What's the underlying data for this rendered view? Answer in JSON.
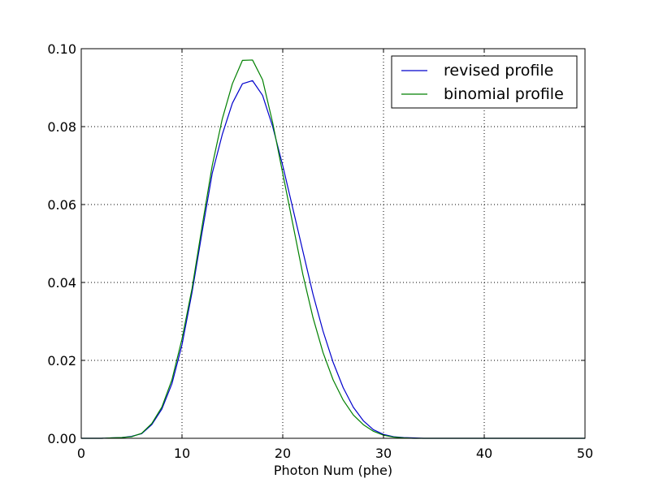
{
  "chart_data": {
    "type": "line",
    "title": "",
    "xlabel": "Photon Num (phe)",
    "ylabel": "",
    "xlim": [
      0,
      50
    ],
    "ylim": [
      0,
      0.1
    ],
    "grid": true,
    "legend_position": "top-right",
    "x_ticks": [
      0,
      10,
      20,
      30,
      40,
      50
    ],
    "x_tick_labels": [
      "0",
      "10",
      "20",
      "30",
      "40",
      "50"
    ],
    "y_ticks": [
      0,
      0.02,
      0.04,
      0.06,
      0.08,
      0.1
    ],
    "y_tick_labels": [
      "0.00",
      "0.02",
      "0.04",
      "0.06",
      "0.08",
      "0.10"
    ],
    "series": [
      {
        "name": "revised profile",
        "color": "#0000cc",
        "x": [
          0,
          1,
          2,
          3,
          4,
          5,
          6,
          7,
          8,
          9,
          10,
          11,
          12,
          13,
          14,
          15,
          16,
          17,
          18,
          19,
          20,
          21,
          22,
          23,
          24,
          25,
          26,
          27,
          28,
          29,
          30,
          31,
          32,
          33,
          34,
          35,
          36,
          37,
          38,
          39,
          40,
          41,
          42,
          43,
          44,
          45,
          46,
          47,
          48,
          49,
          50
        ],
        "y": [
          0,
          0,
          0,
          0.0001,
          0.0002,
          0.0005,
          0.0012,
          0.0035,
          0.0075,
          0.014,
          0.024,
          0.0375,
          0.053,
          0.068,
          0.078,
          0.086,
          0.091,
          0.0918,
          0.088,
          0.08,
          0.07,
          0.059,
          0.048,
          0.037,
          0.0275,
          0.0195,
          0.013,
          0.008,
          0.0045,
          0.0022,
          0.001,
          0.0004,
          0.0002,
          0.0001,
          0,
          0,
          0,
          0,
          0,
          0,
          0,
          0,
          0,
          0,
          0,
          0,
          0,
          0,
          0,
          0,
          0
        ]
      },
      {
        "name": "binomial profile",
        "color": "#008000",
        "x": [
          0,
          1,
          2,
          3,
          4,
          5,
          6,
          7,
          8,
          9,
          10,
          11,
          12,
          13,
          14,
          15,
          16,
          17,
          18,
          19,
          20,
          21,
          22,
          23,
          24,
          25,
          26,
          27,
          28,
          29,
          30,
          31,
          32,
          33,
          34,
          35,
          36,
          37,
          38,
          39,
          40,
          41,
          42,
          43,
          44,
          45,
          46,
          47,
          48,
          49,
          50
        ],
        "y": [
          0,
          0,
          0,
          0.0001,
          0.0002,
          0.0004,
          0.0013,
          0.0038,
          0.008,
          0.015,
          0.0255,
          0.0385,
          0.0545,
          0.07,
          0.082,
          0.091,
          0.097,
          0.0971,
          0.092,
          0.081,
          0.068,
          0.055,
          0.042,
          0.031,
          0.022,
          0.015,
          0.0098,
          0.006,
          0.0035,
          0.0018,
          0.0008,
          0.0003,
          0.0001,
          0,
          0,
          0,
          0,
          0,
          0,
          0,
          0,
          0,
          0,
          0,
          0,
          0,
          0,
          0,
          0,
          0,
          0
        ]
      }
    ]
  }
}
